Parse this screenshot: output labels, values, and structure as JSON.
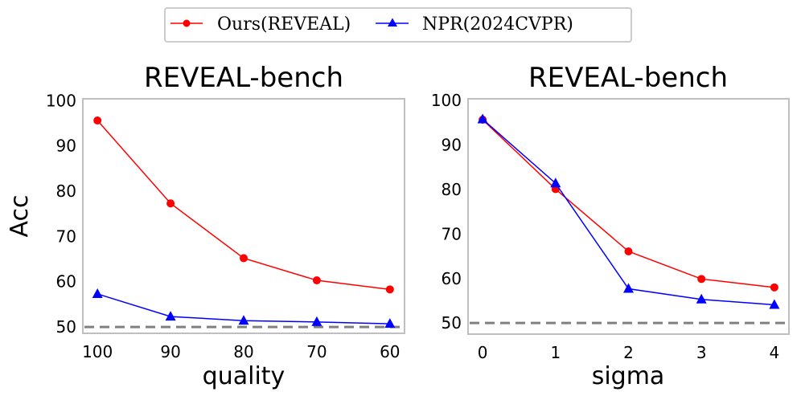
{
  "legend": {
    "placement": "top-center",
    "entries": [
      {
        "label": "Ours(REVEAL)",
        "color": "#ff0000",
        "marker": "circle"
      },
      {
        "label": "NPR(2024CVPR)",
        "color": "#0000ff",
        "marker": "triangle"
      }
    ]
  },
  "chart_data": [
    {
      "type": "line",
      "title": "REVEAL-bench",
      "xlabel": "quality",
      "ylabel": "Acc",
      "categories": [
        "100",
        "90",
        "80",
        "70",
        "60"
      ],
      "ylim": [
        48.6,
        100.4
      ],
      "yticks": [
        50,
        60,
        70,
        80,
        90,
        100
      ],
      "grid": false,
      "baseline": 50,
      "series": [
        {
          "name": "Ours(REVEAL)",
          "color": "#ff0000",
          "marker": "circle",
          "values": [
            95.6,
            77.3,
            65.2,
            60.3,
            58.3
          ]
        },
        {
          "name": "NPR(2024CVPR)",
          "color": "#0000ff",
          "marker": "triangle",
          "values": [
            57.3,
            52.3,
            51.4,
            51.1,
            50.7
          ]
        }
      ]
    },
    {
      "type": "line",
      "title": "REVEAL-bench",
      "xlabel": "sigma",
      "ylabel": "",
      "categories": [
        "0",
        "1",
        "2",
        "3",
        "4"
      ],
      "ylim": [
        47.5,
        100.4
      ],
      "yticks": [
        50,
        60,
        70,
        80,
        90,
        100
      ],
      "grid": false,
      "baseline": 50,
      "series": [
        {
          "name": "Ours(REVEAL)",
          "color": "#ff0000",
          "marker": "circle",
          "values": [
            95.7,
            80.1,
            66.1,
            59.9,
            58.0
          ]
        },
        {
          "name": "NPR(2024CVPR)",
          "color": "#0000ff",
          "marker": "triangle",
          "values": [
            95.8,
            81.4,
            57.7,
            55.3,
            54.1
          ]
        }
      ]
    }
  ]
}
